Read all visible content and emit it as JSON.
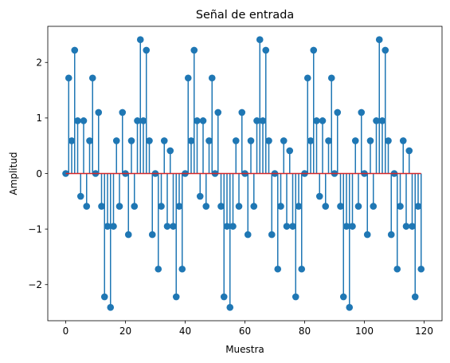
{
  "chart_data": {
    "type": "stem",
    "title": "Señal de entrada",
    "xlabel": "Muestra",
    "ylabel": "Amplitud",
    "xlim": [
      -6,
      126
    ],
    "ylim": [
      -2.65,
      2.65
    ],
    "x_ticks": [
      0,
      20,
      40,
      60,
      80,
      100,
      120
    ],
    "y_ticks": [
      -2,
      -1,
      0,
      1,
      2
    ],
    "x_tick_labels": [
      "0",
      "20",
      "40",
      "60",
      "80",
      "100",
      "120"
    ],
    "y_tick_labels": [
      "−2",
      "−1",
      "0",
      "1",
      "2"
    ],
    "grid": false,
    "colors": {
      "stem": "#1f77b4",
      "baseline": "#d62728"
    },
    "x": [
      0,
      1,
      2,
      3,
      4,
      5,
      6,
      7,
      8,
      9,
      10,
      11,
      12,
      13,
      14,
      15,
      16,
      17,
      18,
      19,
      20,
      21,
      22,
      23,
      24,
      25,
      26,
      27,
      28,
      29,
      30,
      31,
      32,
      33,
      34,
      35,
      36,
      37,
      38,
      39,
      40,
      41,
      42,
      43,
      44,
      45,
      46,
      47,
      48,
      49,
      50,
      51,
      52,
      53,
      54,
      55,
      56,
      57,
      58,
      59,
      60,
      61,
      62,
      63,
      64,
      65,
      66,
      67,
      68,
      69,
      70,
      71,
      72,
      73,
      74,
      75,
      76,
      77,
      78,
      79,
      80,
      81,
      82,
      83,
      84,
      85,
      86,
      87,
      88,
      89,
      90,
      91,
      92,
      93,
      94,
      95,
      96,
      97,
      98,
      99,
      100,
      101,
      102,
      103,
      104,
      105,
      106,
      107,
      108,
      109,
      110,
      111,
      112,
      113,
      114,
      115,
      116,
      117,
      118,
      119
    ],
    "values": [
      0,
      1.72,
      0.59,
      2.22,
      0.95,
      -0.41,
      0.95,
      -0.59,
      0.59,
      1.72,
      0,
      1.1,
      -0.59,
      -2.22,
      -0.95,
      -2.41,
      -0.95,
      0.59,
      -0.59,
      1.1,
      0,
      -1.1,
      0.59,
      -0.59,
      0.95,
      2.41,
      0.95,
      2.22,
      0.59,
      -1.1,
      0,
      -1.72,
      -0.59,
      0.59,
      -0.95,
      0.41,
      -0.95,
      -2.22,
      -0.59,
      -1.72,
      0,
      1.72,
      0.59,
      2.22,
      0.95,
      -0.41,
      0.95,
      -0.59,
      0.59,
      1.72,
      0,
      1.1,
      -0.59,
      -2.22,
      -0.95,
      -2.41,
      -0.95,
      0.59,
      -0.59,
      1.1,
      0,
      -1.1,
      0.59,
      -0.59,
      0.95,
      2.41,
      0.95,
      2.22,
      0.59,
      -1.1,
      0,
      -1.72,
      -0.59,
      0.59,
      -0.95,
      0.41,
      -0.95,
      -2.22,
      -0.59,
      -1.72,
      0,
      1.72,
      0.59,
      2.22,
      0.95,
      -0.41,
      0.95,
      -0.59,
      0.59,
      1.72,
      0,
      1.1,
      -0.59,
      -2.22,
      -0.95,
      -2.41,
      -0.95,
      0.59,
      -0.59,
      1.1,
      0,
      -1.1,
      0.59,
      -0.59,
      0.95,
      2.41,
      0.95,
      2.22,
      0.59,
      -1.1,
      0,
      -1.72,
      -0.59,
      0.59,
      -0.95,
      0.41,
      -0.95,
      -2.22,
      -0.59,
      -1.72
    ]
  }
}
